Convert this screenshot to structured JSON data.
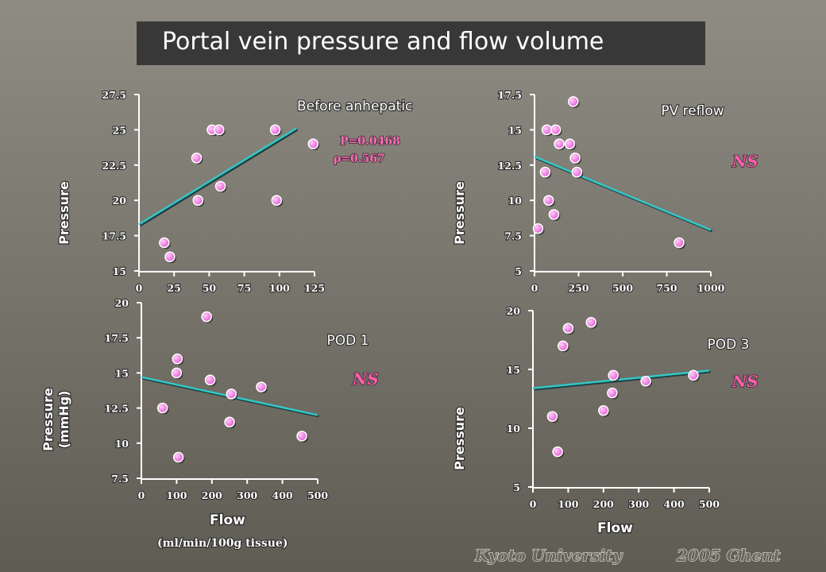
{
  "slide": {
    "title": "Portal vein pressure and flow volume",
    "footer_left": "Kyoto University",
    "footer_right": "2005   Ghent"
  },
  "colors": {
    "point": "#e659d8",
    "point_highlight": "#ffd0f6",
    "regression": "#35c6c6",
    "ns": "#ff5fae"
  },
  "chart_data": [
    {
      "type": "scatter",
      "annotation": "Before anhepatic",
      "ylabel": "Pressure",
      "xlabel": "",
      "x_unit": "",
      "stat_lines": [
        "P=0.0468",
        "ρ=0.567"
      ],
      "significance": "",
      "xlim": [
        0,
        125
      ],
      "ylim": [
        15,
        27.5
      ],
      "xticks": [
        "0",
        "25",
        "50",
        "75",
        "100",
        "125"
      ],
      "yticks": [
        "15",
        "17.5",
        "20",
        "22.5",
        "25",
        "27.5"
      ],
      "points": [
        {
          "x": 18,
          "y": 17
        },
        {
          "x": 22,
          "y": 16
        },
        {
          "x": 41,
          "y": 23
        },
        {
          "x": 42,
          "y": 20
        },
        {
          "x": 52,
          "y": 25
        },
        {
          "x": 57,
          "y": 25
        },
        {
          "x": 58,
          "y": 21
        },
        {
          "x": 97,
          "y": 25
        },
        {
          "x": 98,
          "y": 20
        },
        {
          "x": 124,
          "y": 24
        }
      ],
      "regression": [
        {
          "x": 0,
          "y": 18.3
        },
        {
          "x": 112,
          "y": 25.1
        }
      ]
    },
    {
      "type": "scatter",
      "annotation": "PV reflow",
      "ylabel": "Pressure",
      "xlabel": "",
      "x_unit": "",
      "stat_lines": [],
      "significance": "NS",
      "xlim": [
        0,
        1000
      ],
      "ylim": [
        5,
        17.5
      ],
      "xticks": [
        "0",
        "250",
        "500",
        "750",
        "1000"
      ],
      "yticks": [
        "5",
        "7.5",
        "10",
        "12.5",
        "15",
        "17.5"
      ],
      "points": [
        {
          "x": 20,
          "y": 8
        },
        {
          "x": 60,
          "y": 12
        },
        {
          "x": 70,
          "y": 15
        },
        {
          "x": 80,
          "y": 10
        },
        {
          "x": 110,
          "y": 9
        },
        {
          "x": 120,
          "y": 15
        },
        {
          "x": 140,
          "y": 14
        },
        {
          "x": 200,
          "y": 14
        },
        {
          "x": 220,
          "y": 17
        },
        {
          "x": 230,
          "y": 13
        },
        {
          "x": 240,
          "y": 12
        },
        {
          "x": 820,
          "y": 7
        }
      ],
      "regression": [
        {
          "x": 0,
          "y": 13.1
        },
        {
          "x": 1000,
          "y": 7.9
        }
      ]
    },
    {
      "type": "scatter",
      "annotation": "POD 1",
      "ylabel": "Pressure (mmHg)",
      "xlabel": "Flow",
      "x_unit": "(ml/min/100g tissue)",
      "stat_lines": [],
      "significance": "NS",
      "xlim": [
        0,
        500
      ],
      "ylim": [
        7.5,
        20
      ],
      "xticks": [
        "0",
        "100",
        "200",
        "300",
        "400",
        "500"
      ],
      "yticks": [
        "7.5",
        "10",
        "12.5",
        "15",
        "17.5",
        "20"
      ],
      "points": [
        {
          "x": 60,
          "y": 12.5
        },
        {
          "x": 100,
          "y": 15
        },
        {
          "x": 102,
          "y": 16
        },
        {
          "x": 105,
          "y": 9
        },
        {
          "x": 185,
          "y": 19
        },
        {
          "x": 195,
          "y": 14.5
        },
        {
          "x": 250,
          "y": 11.5
        },
        {
          "x": 255,
          "y": 13.5
        },
        {
          "x": 340,
          "y": 14
        },
        {
          "x": 455,
          "y": 10.5
        }
      ],
      "regression": [
        {
          "x": 0,
          "y": 14.7
        },
        {
          "x": 500,
          "y": 12
        }
      ]
    },
    {
      "type": "scatter",
      "annotation": "POD 3",
      "ylabel": "Pressure",
      "xlabel": "Flow",
      "x_unit": "",
      "stat_lines": [],
      "significance": "NS",
      "xlim": [
        0,
        500
      ],
      "ylim": [
        5,
        20
      ],
      "xticks": [
        "0",
        "100",
        "200",
        "300",
        "400",
        "500"
      ],
      "yticks": [
        "5",
        "10",
        "15",
        "20"
      ],
      "points": [
        {
          "x": 55,
          "y": 11
        },
        {
          "x": 70,
          "y": 8
        },
        {
          "x": 85,
          "y": 17
        },
        {
          "x": 100,
          "y": 18.5
        },
        {
          "x": 165,
          "y": 19
        },
        {
          "x": 200,
          "y": 11.5
        },
        {
          "x": 225,
          "y": 13
        },
        {
          "x": 228,
          "y": 14.5
        },
        {
          "x": 320,
          "y": 14
        },
        {
          "x": 455,
          "y": 14.5
        }
      ],
      "regression": [
        {
          "x": 0,
          "y": 13.4
        },
        {
          "x": 500,
          "y": 14.9
        }
      ]
    }
  ]
}
